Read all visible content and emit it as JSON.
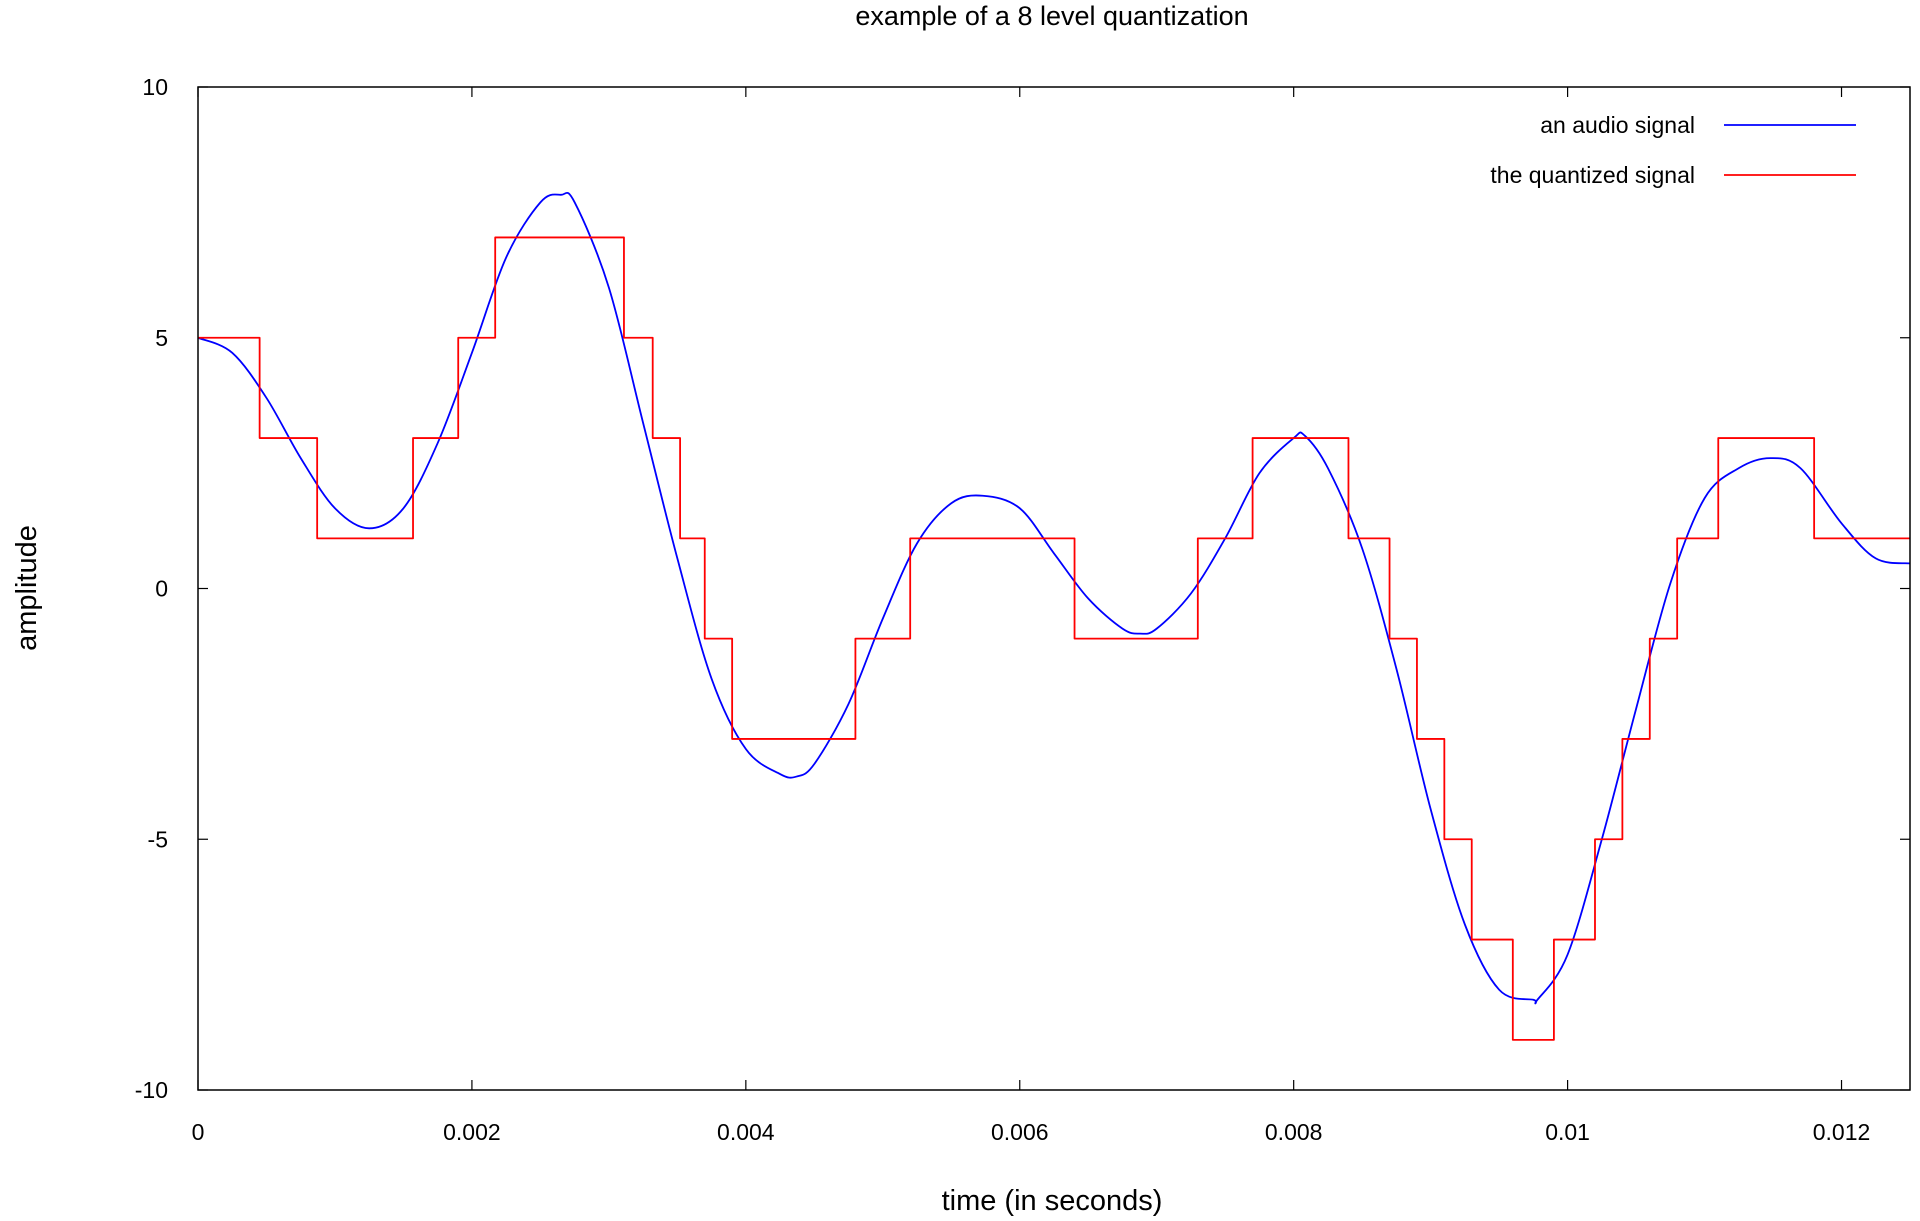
{
  "chart_data": {
    "type": "line",
    "title": "example of a 8 level quantization",
    "xlabel": "time (in seconds)",
    "ylabel": "amplitude",
    "xlim": [
      0,
      0.0125
    ],
    "ylim": [
      -10,
      10
    ],
    "x_ticks": [
      {
        "value": 0,
        "label": "0"
      },
      {
        "value": 0.002,
        "label": "0.002"
      },
      {
        "value": 0.004,
        "label": "0.004"
      },
      {
        "value": 0.006,
        "label": "0.006"
      },
      {
        "value": 0.008,
        "label": "0.008"
      },
      {
        "value": 0.01,
        "label": "0.01"
      },
      {
        "value": 0.012,
        "label": "0.012"
      }
    ],
    "y_ticks": [
      {
        "value": 10,
        "label": "10"
      },
      {
        "value": 5,
        "label": "5"
      },
      {
        "value": 0,
        "label": "0"
      },
      {
        "value": -5,
        "label": "-5"
      },
      {
        "value": -10,
        "label": "-10"
      }
    ],
    "grid": false,
    "legend_position": "top-right",
    "series": [
      {
        "name": "an audio signal",
        "color": "#0000ff",
        "style": "smooth",
        "x": [
          0,
          0.00025,
          0.0005,
          0.00075,
          0.001,
          0.00125,
          0.0015,
          0.00175,
          0.002,
          0.00225,
          0.0025,
          0.00265,
          0.00275,
          0.003,
          0.00325,
          0.0035,
          0.00375,
          0.004,
          0.00425,
          0.00437,
          0.0045,
          0.00475,
          0.005,
          0.00525,
          0.0055,
          0.00573,
          0.006,
          0.00625,
          0.0065,
          0.00675,
          0.00688,
          0.007,
          0.00725,
          0.0075,
          0.00775,
          0.008,
          0.00808,
          0.00825,
          0.0085,
          0.00875,
          0.009,
          0.00925,
          0.0095,
          0.00975,
          0.00978,
          0.01,
          0.01025,
          0.0105,
          0.01075,
          0.011,
          0.01125,
          0.01148,
          0.0117,
          0.012,
          0.01225,
          0.0125
        ],
        "y": [
          5.0,
          4.7,
          3.8,
          2.6,
          1.6,
          1.2,
          1.6,
          2.9,
          4.7,
          6.6,
          7.7,
          7.85,
          7.7,
          6.0,
          3.3,
          0.6,
          -1.8,
          -3.2,
          -3.7,
          -3.75,
          -3.5,
          -2.3,
          -0.6,
          0.9,
          1.7,
          1.85,
          1.6,
          0.7,
          -0.2,
          -0.8,
          -0.9,
          -0.8,
          -0.1,
          1.0,
          2.3,
          3.0,
          3.05,
          2.4,
          0.8,
          -1.6,
          -4.4,
          -6.7,
          -8.0,
          -8.2,
          -8.2,
          -7.3,
          -5.0,
          -2.4,
          0.1,
          1.8,
          2.4,
          2.6,
          2.4,
          1.3,
          0.6,
          0.5
        ]
      },
      {
        "name": "the quantized signal",
        "color": "#ff0000",
        "style": "step",
        "breaks": [
          0,
          0.00045,
          0.00087,
          0.00157,
          0.0019,
          0.00217,
          0.00311,
          0.00332,
          0.00352,
          0.0037,
          0.0039,
          0.0048,
          0.0052,
          0.0064,
          0.0073,
          0.0077,
          0.0084,
          0.0087,
          0.0089,
          0.0091,
          0.0093,
          0.0096,
          0.0099,
          0.0102,
          0.0104,
          0.0106,
          0.0108,
          0.0111,
          0.0118,
          0.0125
        ],
        "levels": [
          5,
          3,
          1,
          3,
          5,
          7,
          5,
          3,
          1,
          -1,
          -3,
          -1,
          1,
          -1,
          1,
          3,
          1,
          -1,
          -3,
          -5,
          -7,
          -9,
          -7,
          -5,
          -3,
          -1,
          1,
          3,
          1
        ]
      }
    ]
  }
}
